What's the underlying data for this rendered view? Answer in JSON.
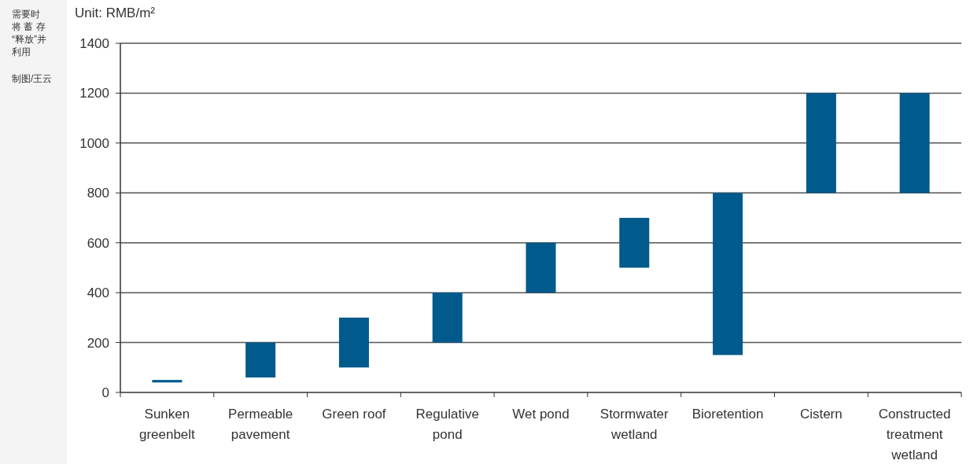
{
  "chart_data": {
    "type": "bar",
    "ylabel": "Unit: RMB/m²",
    "categories": [
      "Sunken greenbelt",
      "Permeable pavement",
      "Green roof",
      "Regulative pond",
      "Wet pond",
      "Stormwater wetland",
      "Bioretention",
      "Cistern",
      "Constructed treatment wetland"
    ],
    "base": [
      40,
      60,
      100,
      200,
      400,
      500,
      150,
      800,
      800
    ],
    "values": [
      10,
      140,
      200,
      200,
      200,
      200,
      650,
      400,
      400
    ],
    "color": "#005a8c",
    "ylim": [
      0,
      1400
    ],
    "yticks": [
      0,
      200,
      400,
      600,
      800,
      1000,
      1200,
      1400
    ],
    "grid": "y",
    "annotations": [
      "需要时",
      "将 蓄 存",
      "“释放”并",
      "利用",
      "制图/王云"
    ]
  }
}
